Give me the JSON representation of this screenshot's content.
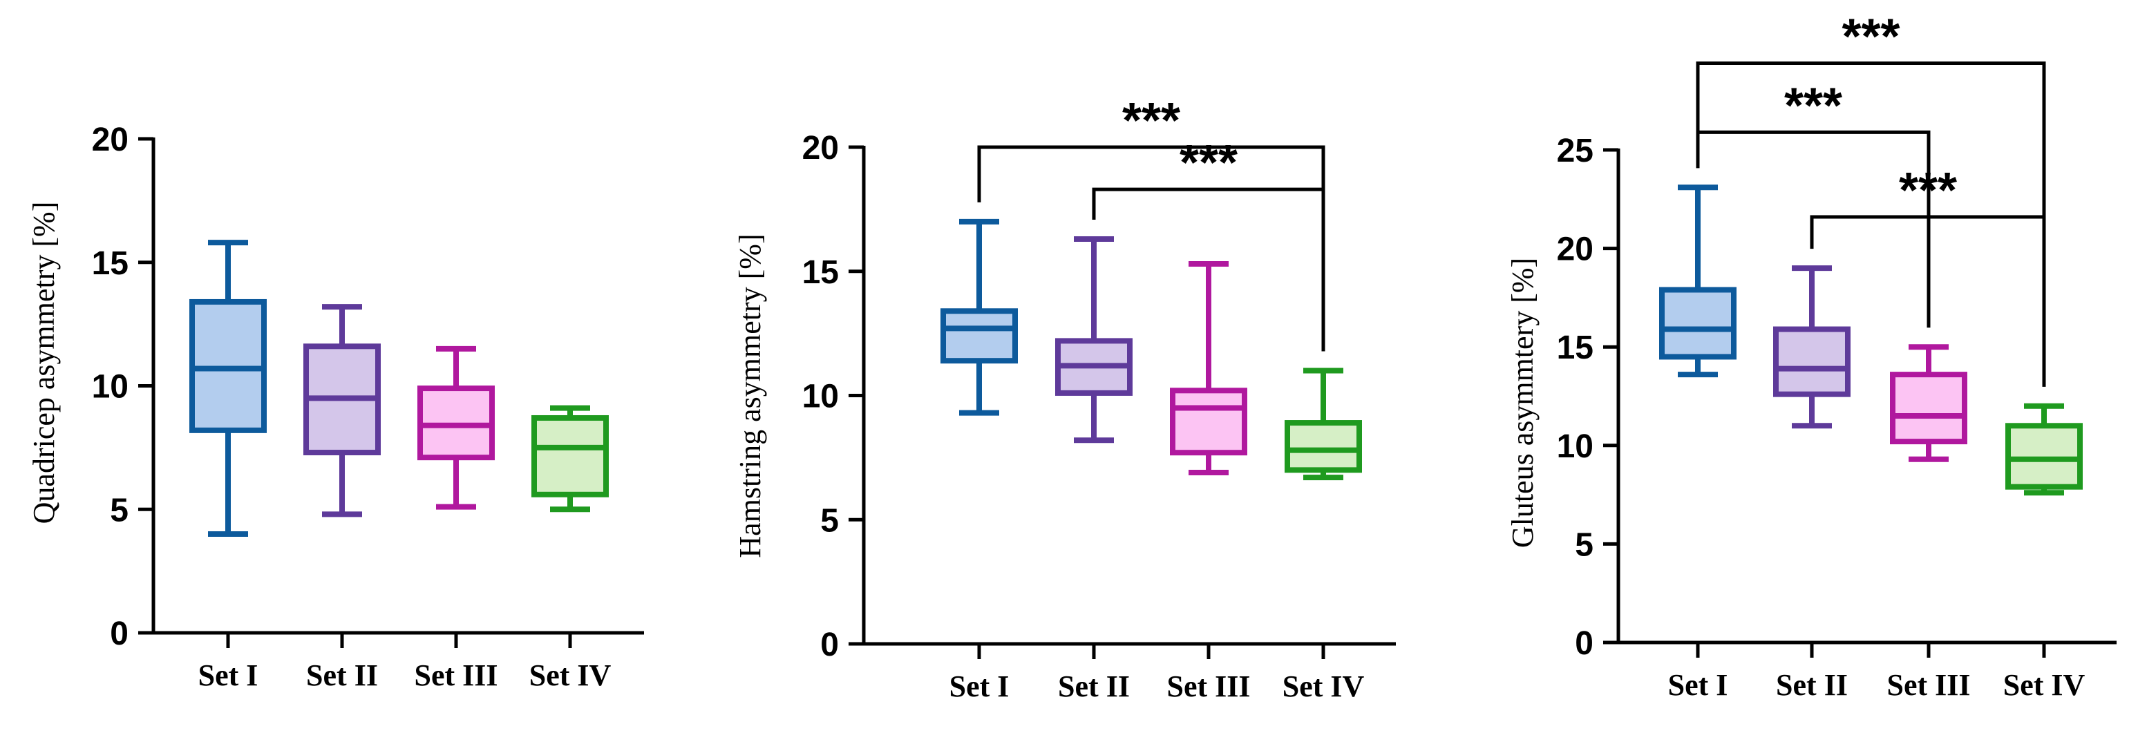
{
  "colors": {
    "set_i": {
      "stroke": "#0d5a9c",
      "fill": "#b3cdee"
    },
    "set_ii": {
      "stroke": "#5e3a9a",
      "fill": "#d4c6ea"
    },
    "set_iii": {
      "stroke": "#b0189e",
      "fill": "#fcc4f3"
    },
    "set_iv": {
      "stroke": "#1f9a1f",
      "fill": "#d6efc6"
    },
    "axis": "#000000"
  },
  "chart_data": [
    {
      "type": "box",
      "ylabel": "Quadricep asymmetry [%]",
      "ylim": [
        0,
        20
      ],
      "yticks": [
        "0",
        "5",
        "10",
        "15",
        "20"
      ],
      "categories": [
        "Set I",
        "Set II",
        "Set III",
        "Set IV"
      ],
      "boxes": [
        {
          "min": 4.0,
          "q1": 8.2,
          "median": 10.7,
          "q3": 13.4,
          "max": 15.8
        },
        {
          "min": 4.8,
          "q1": 7.3,
          "median": 9.5,
          "q3": 11.6,
          "max": 13.2
        },
        {
          "min": 5.1,
          "q1": 7.1,
          "median": 8.4,
          "q3": 9.9,
          "max": 11.5
        },
        {
          "min": 5.0,
          "q1": 5.6,
          "median": 7.5,
          "q3": 8.7,
          "max": 9.1
        }
      ],
      "significance": []
    },
    {
      "type": "box",
      "ylabel": "Hamstring asymmetry [%]",
      "ylim": [
        0,
        20
      ],
      "yticks": [
        "0",
        "5",
        "10",
        "15",
        "20"
      ],
      "categories": [
        "Set I",
        "Set II",
        "Set III",
        "Set IV"
      ],
      "boxes": [
        {
          "min": 9.3,
          "q1": 11.4,
          "median": 12.7,
          "q3": 13.4,
          "max": 17.0
        },
        {
          "min": 8.2,
          "q1": 10.1,
          "median": 11.2,
          "q3": 12.2,
          "max": 16.3
        },
        {
          "min": 6.9,
          "q1": 7.7,
          "median": 9.5,
          "q3": 10.2,
          "max": 15.3
        },
        {
          "min": 6.7,
          "q1": 7.0,
          "median": 7.8,
          "q3": 8.9,
          "max": 11.0
        }
      ],
      "significance": [
        {
          "from": 0,
          "to": 3,
          "level": 20.0,
          "label": "***"
        },
        {
          "from": 1,
          "to": 3,
          "level": 18.3,
          "label": "***"
        }
      ]
    },
    {
      "type": "box",
      "ylabel": "Gluteus asymmtery [%]",
      "ylim": [
        0,
        25
      ],
      "yticks": [
        "0",
        "5",
        "10",
        "15",
        "20",
        "25"
      ],
      "categories": [
        "Set I",
        "Set II",
        "Set III",
        "Set IV"
      ],
      "boxes": [
        {
          "min": 13.6,
          "q1": 14.5,
          "median": 15.9,
          "q3": 17.9,
          "max": 23.1
        },
        {
          "min": 11.0,
          "q1": 12.6,
          "median": 13.9,
          "q3": 15.9,
          "max": 19.0
        },
        {
          "min": 9.3,
          "q1": 10.2,
          "median": 11.5,
          "q3": 13.6,
          "max": 15.0
        },
        {
          "min": 7.6,
          "q1": 7.9,
          "median": 9.3,
          "q3": 11.0,
          "max": 12.0
        }
      ],
      "significance": [
        {
          "from": 0,
          "to": 3,
          "level": 29.4,
          "label": "***"
        },
        {
          "from": 0,
          "to": 2,
          "level": 25.9,
          "label": "***"
        },
        {
          "from": 1,
          "to": 3,
          "level": 21.6,
          "label": "***"
        }
      ]
    }
  ]
}
